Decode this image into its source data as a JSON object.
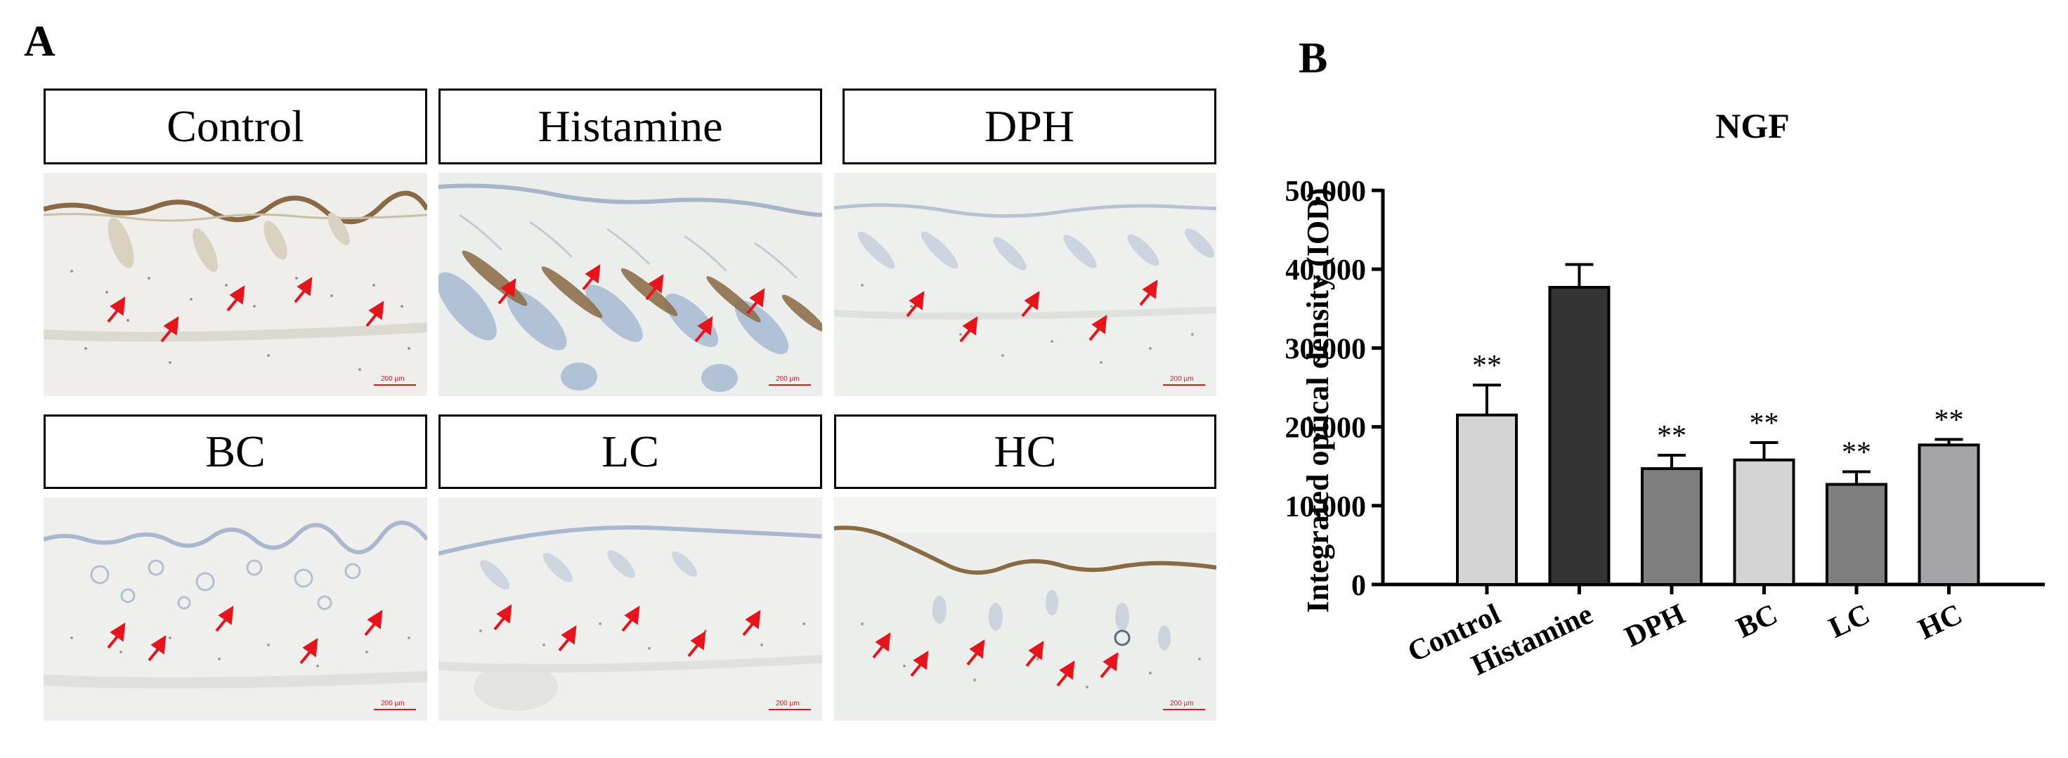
{
  "panel_a": {
    "letter": "A",
    "images": [
      {
        "label": "Control",
        "scale_text": "200 µm"
      },
      {
        "label": "Histamine",
        "scale_text": "200 µm"
      },
      {
        "label": "DPH",
        "scale_text": "200 µm"
      },
      {
        "label": "BC",
        "scale_text": "200 µm"
      },
      {
        "label": "LC",
        "scale_text": "200 µm"
      },
      {
        "label": "HC",
        "scale_text": "200 µm"
      }
    ],
    "colors": {
      "arrow": "#e8141b",
      "tissue_bg": "#eeeeea",
      "stain_brown": "#8a6a45",
      "stain_blue": "#9fb3cf"
    }
  },
  "panel_b": {
    "letter": "B"
  },
  "chart_data": {
    "type": "bar",
    "title": "NGF",
    "ylabel": "Integrated optical density (IOD)",
    "xlabel": "",
    "categories": [
      "Control",
      "Histamine",
      "DPH",
      "BC",
      "LC",
      "HC"
    ],
    "values": [
      21500,
      37700,
      14700,
      15800,
      12700,
      17700
    ],
    "errors": [
      3800,
      2900,
      1700,
      2200,
      1600,
      700
    ],
    "significance": [
      "**",
      "",
      "**",
      "**",
      "**",
      "**"
    ],
    "bar_colors": [
      "#d4d4d4",
      "#333333",
      "#7f7f7f",
      "#d4d4d4",
      "#7f7f7f",
      "#a3a3a8"
    ],
    "ylim": [
      0,
      50000
    ],
    "yticks": [
      0,
      10000,
      20000,
      30000,
      40000,
      50000
    ],
    "ytick_labels": [
      "0",
      "10,000",
      "20,000",
      "30,000",
      "40,000",
      "50,000"
    ],
    "grid": false,
    "legend": "none"
  }
}
